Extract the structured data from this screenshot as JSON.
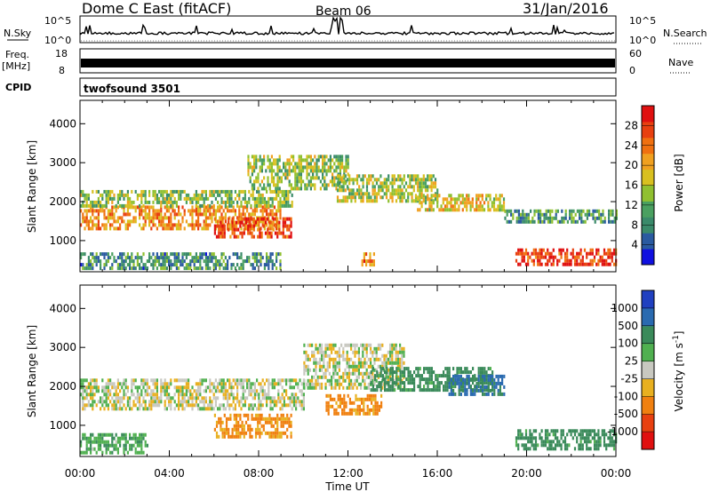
{
  "header": {
    "station": "Dome C East (fitACF)",
    "beam": "Beam 06",
    "date": "31/Jan/2016"
  },
  "strip_panels": {
    "nsky": {
      "label": "N.Sky",
      "top_tick": "10^5",
      "bottom_tick": "10^0"
    },
    "nsearch": {
      "label": "N.Search",
      "top_tick": "10^5",
      "bottom_tick": "10^0"
    },
    "freq": {
      "label_line1": "Freq.",
      "label_line2": "[MHz]",
      "top_tick": "18",
      "bottom_tick": "8"
    },
    "nave": {
      "label": "Nave",
      "top_tick": "60",
      "bottom_tick": "0"
    },
    "cpid": {
      "label": "CPID",
      "value": "twofsound 3501"
    }
  },
  "chart_data": [
    {
      "type": "heatmap",
      "panel": "power",
      "xlabel": "",
      "ylabel": "Slant Range [km]",
      "x_ticks": [
        "00:00",
        "04:00",
        "08:00",
        "12:00",
        "16:00",
        "20:00",
        "00:00"
      ],
      "y_ticks": [
        1000,
        2000,
        3000,
        4000
      ],
      "xlim_hours": [
        0,
        24
      ],
      "ylim_km": [
        200,
        4600
      ],
      "colorbar": {
        "label": "Power [dB]",
        "ticks": [
          4,
          8,
          12,
          16,
          20,
          24,
          28
        ],
        "range": [
          0,
          32
        ],
        "colors": [
          "#1010e0",
          "#2a5aa0",
          "#3a8a6a",
          "#4aa060",
          "#90c030",
          "#d8c020",
          "#f0a020",
          "#f07010",
          "#e84010",
          "#e01010"
        ]
      },
      "regions": [
        {
          "t0": 0.0,
          "t1": 9.0,
          "r0": 1300,
          "r1": 1900,
          "level": 22
        },
        {
          "t0": 0.0,
          "t1": 9.5,
          "r0": 1900,
          "r1": 2300,
          "level": 14
        },
        {
          "t0": 6.0,
          "t1": 9.5,
          "r0": 1100,
          "r1": 1600,
          "level": 26
        },
        {
          "t0": 7.5,
          "t1": 12.0,
          "r0": 2300,
          "r1": 3200,
          "level": 14
        },
        {
          "t0": 11.5,
          "t1": 16.0,
          "r0": 2000,
          "r1": 2700,
          "level": 15
        },
        {
          "t0": 15.0,
          "t1": 19.0,
          "r0": 1800,
          "r1": 2200,
          "level": 18
        },
        {
          "t0": 19.0,
          "t1": 24.0,
          "r0": 1500,
          "r1": 1800,
          "level": 10
        },
        {
          "t0": 19.5,
          "t1": 24.0,
          "r0": 400,
          "r1": 800,
          "level": 28
        },
        {
          "t0": 0.0,
          "t1": 9.0,
          "r0": 300,
          "r1": 700,
          "level": 9
        },
        {
          "t0": 12.6,
          "t1": 13.2,
          "r0": 400,
          "r1": 700,
          "level": 24
        }
      ]
    },
    {
      "type": "heatmap",
      "panel": "velocity",
      "xlabel": "Time UT",
      "ylabel": "Slant Range [km]",
      "x_ticks": [
        "00:00",
        "04:00",
        "08:00",
        "12:00",
        "16:00",
        "20:00",
        "00:00"
      ],
      "y_ticks": [
        1000,
        2000,
        3000,
        4000
      ],
      "xlim_hours": [
        0,
        24
      ],
      "ylim_km": [
        200,
        4600
      ],
      "colorbar": {
        "label": "Velocity [m s^-1]",
        "ticks": [
          1000,
          500,
          100,
          25,
          -25,
          -100,
          -500,
          -1000
        ],
        "colors": [
          "#2040c0",
          "#2a6ab0",
          "#3a8a5a",
          "#50b050",
          "#c8c8c0",
          "#e8b020",
          "#f08010",
          "#e84010",
          "#e01010"
        ]
      },
      "regions": [
        {
          "t0": 0.0,
          "t1": 10.0,
          "r0": 1400,
          "r1": 2200,
          "level": 0
        },
        {
          "t0": 6.0,
          "t1": 9.5,
          "r0": 700,
          "r1": 1300,
          "level": -120
        },
        {
          "t0": 10.0,
          "t1": 14.5,
          "r0": 2000,
          "r1": 3100,
          "level": 0
        },
        {
          "t0": 13.0,
          "t1": 18.5,
          "r0": 1900,
          "r1": 2500,
          "level": 150
        },
        {
          "t0": 16.5,
          "t1": 19.0,
          "r0": 1800,
          "r1": 2300,
          "level": 600
        },
        {
          "t0": 19.5,
          "t1": 24.0,
          "r0": 400,
          "r1": 900,
          "level": 150
        },
        {
          "t0": 0.0,
          "t1": 3.0,
          "r0": 300,
          "r1": 800,
          "level": 80
        },
        {
          "t0": 11.0,
          "t1": 13.5,
          "r0": 1300,
          "r1": 1800,
          "level": -120
        }
      ]
    }
  ]
}
